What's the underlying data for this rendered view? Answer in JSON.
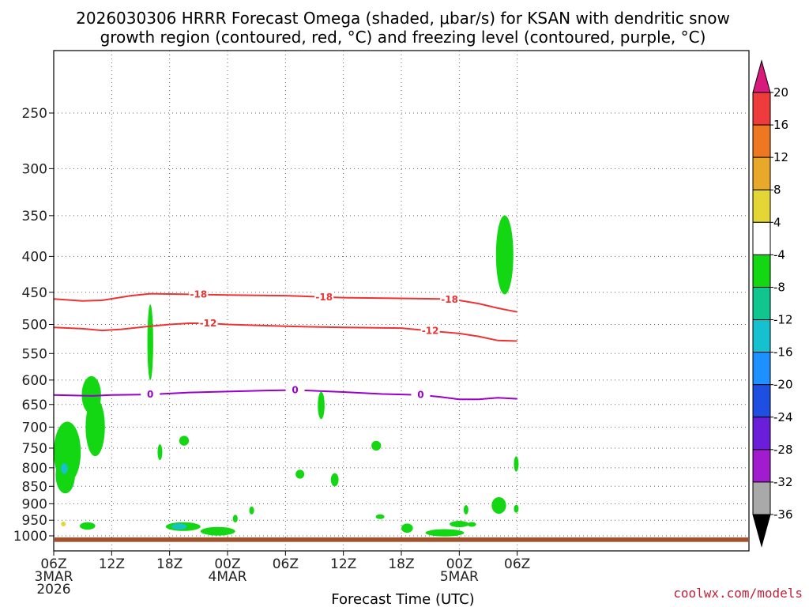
{
  "title": {
    "line1": "2026030306 HRRR Forecast Omega (shaded, μbar/s) for KSAN with dendritic snow",
    "line2": "growth region (contoured, red, °C) and freezing level (contoured, purple, °C)"
  },
  "xlabel": "Forecast Time (UTC)",
  "credit": "coolwx.com/models",
  "chart_data": {
    "type": "time-height cross-section",
    "y_axis": {
      "label": "",
      "scale": "log-pressure (inverted)",
      "units": "hPa",
      "range": [
        1020,
        200
      ],
      "ticks": [
        250,
        300,
        350,
        400,
        450,
        500,
        550,
        600,
        650,
        700,
        750,
        800,
        850,
        900,
        950,
        1000
      ]
    },
    "x_axis": {
      "range_hours": [
        0,
        72
      ],
      "ticks": [
        {
          "hour": 0,
          "label": "06Z",
          "date": "3MAR",
          "year": "2026"
        },
        {
          "hour": 6,
          "label": "12Z"
        },
        {
          "hour": 12,
          "label": "18Z"
        },
        {
          "hour": 18,
          "label": "00Z",
          "date": "4MAR"
        },
        {
          "hour": 24,
          "label": "06Z"
        },
        {
          "hour": 30,
          "label": "12Z"
        },
        {
          "hour": 36,
          "label": "18Z"
        },
        {
          "hour": 42,
          "label": "00Z",
          "date": "5MAR"
        },
        {
          "hour": 48,
          "label": "06Z"
        }
      ]
    },
    "grid": true,
    "contours": [
      {
        "name": "-18",
        "color": "#ee3333",
        "labels_at_hour": [
          15,
          28,
          41
        ],
        "points": [
          [
            0,
            460
          ],
          [
            3,
            463
          ],
          [
            5,
            462
          ],
          [
            8,
            455
          ],
          [
            10,
            452
          ],
          [
            14,
            453
          ],
          [
            18,
            454
          ],
          [
            24,
            455
          ],
          [
            30,
            458
          ],
          [
            36,
            459
          ],
          [
            40,
            460
          ],
          [
            42,
            462
          ],
          [
            44,
            467
          ],
          [
            46,
            474
          ],
          [
            48,
            480
          ]
        ]
      },
      {
        "name": "-12",
        "color": "#ee3333",
        "labels_at_hour": [
          16,
          39
        ],
        "points": [
          [
            0,
            505
          ],
          [
            3,
            507
          ],
          [
            5,
            510
          ],
          [
            7,
            508
          ],
          [
            10,
            503
          ],
          [
            12,
            500
          ],
          [
            14,
            498
          ],
          [
            16,
            498
          ],
          [
            18,
            500
          ],
          [
            24,
            503
          ],
          [
            30,
            505
          ],
          [
            36,
            506
          ],
          [
            40,
            512
          ],
          [
            42,
            515
          ],
          [
            44,
            520
          ],
          [
            46,
            527
          ],
          [
            48,
            528
          ]
        ]
      },
      {
        "name": "0",
        "color": "#9900cc",
        "labels_at_hour": [
          10,
          25,
          38
        ],
        "points": [
          [
            0,
            630
          ],
          [
            4,
            632
          ],
          [
            6,
            630
          ],
          [
            10,
            629
          ],
          [
            14,
            625
          ],
          [
            16,
            624
          ],
          [
            18,
            623
          ],
          [
            22,
            621
          ],
          [
            25,
            620
          ],
          [
            30,
            624
          ],
          [
            34,
            628
          ],
          [
            38,
            630
          ],
          [
            40,
            634
          ],
          [
            42,
            639
          ],
          [
            44,
            639
          ],
          [
            46,
            636
          ],
          [
            48,
            638
          ]
        ]
      }
    ],
    "ground_band_pressure_range": [
      1005,
      1020
    ],
    "colorbar": {
      "units": "μbar/s",
      "labels": [
        20,
        16,
        12,
        8,
        4,
        -4,
        -8,
        -12,
        -16,
        -20,
        -24,
        -28,
        -32,
        -36
      ],
      "bins": [
        {
          "range": "> 20",
          "color": "#d81b7a"
        },
        {
          "range": "16 to 20",
          "color": "#ee3b3b"
        },
        {
          "range": "12 to 16",
          "color": "#ee7722"
        },
        {
          "range": "8 to 12",
          "color": "#e8a82a"
        },
        {
          "range": "4 to 8",
          "color": "#e3d636"
        },
        {
          "range": "-4 to 4",
          "color": "#ffffff"
        },
        {
          "range": "-8 to -4",
          "color": "#14d714"
        },
        {
          "range": "-12 to -8",
          "color": "#11c58f"
        },
        {
          "range": "-16 to -12",
          "color": "#15c0cf"
        },
        {
          "range": "-20 to -16",
          "color": "#1e90ff"
        },
        {
          "range": "-24 to -20",
          "color": "#1f4fe0"
        },
        {
          "range": "-28 to -24",
          "color": "#6a1ed8"
        },
        {
          "range": "-32 to -28",
          "color": "#a21ccf"
        },
        {
          "range": "-36 to -32",
          "color": "#a9a9a9"
        },
        {
          "range": "< -36",
          "color": "#000000"
        }
      ]
    },
    "omega_regions": [
      {
        "value": -6,
        "hour": 1.4,
        "p": 760,
        "dt": 1.4,
        "dp": 80
      },
      {
        "value": -6,
        "hour": 1.2,
        "p": 820,
        "dt": 1.0,
        "dp": 50
      },
      {
        "value": -14,
        "hour": 1.1,
        "p": 802,
        "dt": 0.35,
        "dp": 14
      },
      {
        "value": 6,
        "hour": 1.0,
        "p": 962,
        "dt": 0.15,
        "dp": 6
      },
      {
        "value": -6,
        "hour": 3.9,
        "p": 630,
        "dt": 1.0,
        "dp": 40
      },
      {
        "value": -6,
        "hour": 4.3,
        "p": 700,
        "dt": 1.0,
        "dp": 70
      },
      {
        "value": -6,
        "hour": 3.5,
        "p": 968,
        "dt": 0.8,
        "dp": 12
      },
      {
        "value": -6,
        "hour": 10.0,
        "p": 530,
        "dt": 0.3,
        "dp": 70
      },
      {
        "value": -6,
        "hour": 11.0,
        "p": 760,
        "dt": 0.22,
        "dp": 20
      },
      {
        "value": -6,
        "hour": 13.5,
        "p": 732,
        "dt": 0.5,
        "dp": 12
      },
      {
        "value": -6,
        "hour": 13.4,
        "p": 970,
        "dt": 1.8,
        "dp": 14
      },
      {
        "value": -14,
        "hour": 13.0,
        "p": 970,
        "dt": 0.8,
        "dp": 9
      },
      {
        "value": -6,
        "hour": 17.0,
        "p": 985,
        "dt": 1.8,
        "dp": 14
      },
      {
        "value": -6,
        "hour": 18.8,
        "p": 945,
        "dt": 0.25,
        "dp": 12
      },
      {
        "value": -6,
        "hour": 20.5,
        "p": 920,
        "dt": 0.25,
        "dp": 12
      },
      {
        "value": -6,
        "hour": 25.5,
        "p": 817,
        "dt": 0.45,
        "dp": 12
      },
      {
        "value": -6,
        "hour": 27.7,
        "p": 652,
        "dt": 0.35,
        "dp": 30
      },
      {
        "value": -6,
        "hour": 29.1,
        "p": 832,
        "dt": 0.4,
        "dp": 18
      },
      {
        "value": -6,
        "hour": 33.4,
        "p": 744,
        "dt": 0.5,
        "dp": 12
      },
      {
        "value": -6,
        "hour": 33.8,
        "p": 939,
        "dt": 0.45,
        "dp": 5
      },
      {
        "value": -6,
        "hour": 36.6,
        "p": 975,
        "dt": 0.6,
        "dp": 15
      },
      {
        "value": -6,
        "hour": 40.5,
        "p": 990,
        "dt": 2.0,
        "dp": 12
      },
      {
        "value": -6,
        "hour": 42.0,
        "p": 962,
        "dt": 1.0,
        "dp": 10
      },
      {
        "value": -6,
        "hour": 43.3,
        "p": 963,
        "dt": 0.45,
        "dp": 6
      },
      {
        "value": -6,
        "hour": 42.7,
        "p": 918,
        "dt": 0.15,
        "dp": 14
      },
      {
        "value": -6,
        "hour": 46.1,
        "p": 905,
        "dt": 0.75,
        "dp": 25
      },
      {
        "value": -6,
        "hour": 46.7,
        "p": 398,
        "dt": 0.9,
        "dp": 55
      },
      {
        "value": -6,
        "hour": 47.9,
        "p": 790,
        "dt": 0.12,
        "dp": 20
      },
      {
        "value": -6,
        "hour": 47.9,
        "p": 915,
        "dt": 0.12,
        "dp": 12
      }
    ]
  }
}
